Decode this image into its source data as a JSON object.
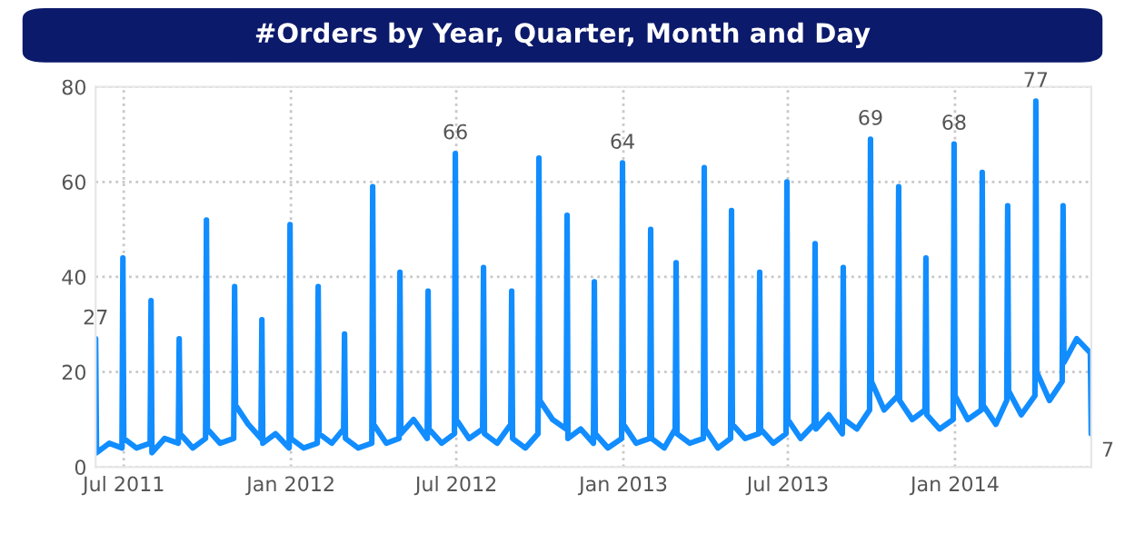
{
  "chart_data": {
    "type": "line",
    "title": "#Orders by Year, Quarter, Month and Day",
    "x": [
      "2011-05-31",
      "2011-06-01",
      "2011-06-15",
      "2011-06-29",
      "2011-06-30",
      "2011-07-01",
      "2011-07-15",
      "2011-07-30",
      "2011-07-31",
      "2011-08-01",
      "2011-08-15",
      "2011-08-30",
      "2011-08-31",
      "2011-09-01",
      "2011-09-15",
      "2011-09-29",
      "2011-09-30",
      "2011-10-01",
      "2011-10-15",
      "2011-10-30",
      "2011-10-31",
      "2011-11-01",
      "2011-11-15",
      "2011-11-29",
      "2011-11-30",
      "2011-12-01",
      "2011-12-15",
      "2011-12-30",
      "2011-12-31",
      "2012-01-01",
      "2012-01-15",
      "2012-01-30",
      "2012-01-31",
      "2012-02-01",
      "2012-02-15",
      "2012-02-28",
      "2012-02-29",
      "2012-03-01",
      "2012-03-15",
      "2012-03-30",
      "2012-03-31",
      "2012-04-01",
      "2012-04-15",
      "2012-04-29",
      "2012-04-30",
      "2012-05-01",
      "2012-05-15",
      "2012-05-30",
      "2012-05-31",
      "2012-06-01",
      "2012-06-15",
      "2012-06-29",
      "2012-06-30",
      "2012-07-01",
      "2012-07-15",
      "2012-07-30",
      "2012-07-31",
      "2012-08-01",
      "2012-08-15",
      "2012-08-30",
      "2012-08-31",
      "2012-09-01",
      "2012-09-15",
      "2012-09-29",
      "2012-09-30",
      "2012-10-01",
      "2012-10-15",
      "2012-10-30",
      "2012-10-31",
      "2012-11-01",
      "2012-11-15",
      "2012-11-29",
      "2012-11-30",
      "2012-12-01",
      "2012-12-15",
      "2012-12-30",
      "2012-12-31",
      "2013-01-01",
      "2013-01-15",
      "2013-01-30",
      "2013-01-31",
      "2013-02-01",
      "2013-02-15",
      "2013-02-27",
      "2013-02-28",
      "2013-03-01",
      "2013-03-15",
      "2013-03-30",
      "2013-03-31",
      "2013-04-01",
      "2013-04-15",
      "2013-04-29",
      "2013-04-30",
      "2013-05-01",
      "2013-05-15",
      "2013-05-30",
      "2013-05-31",
      "2013-06-01",
      "2013-06-15",
      "2013-06-29",
      "2013-06-30",
      "2013-07-01",
      "2013-07-15",
      "2013-07-30",
      "2013-07-31",
      "2013-08-01",
      "2013-08-15",
      "2013-08-30",
      "2013-08-31",
      "2013-09-01",
      "2013-09-15",
      "2013-09-29",
      "2013-09-30",
      "2013-10-01",
      "2013-10-15",
      "2013-10-30",
      "2013-10-31",
      "2013-11-01",
      "2013-11-15",
      "2013-11-29",
      "2013-11-30",
      "2013-12-01",
      "2013-12-15",
      "2013-12-30",
      "2013-12-31",
      "2014-01-01",
      "2014-01-15",
      "2014-01-30",
      "2014-01-31",
      "2014-02-01",
      "2014-02-15",
      "2014-02-27",
      "2014-02-28",
      "2014-03-01",
      "2014-03-15",
      "2014-03-30",
      "2014-03-31",
      "2014-04-01",
      "2014-04-15",
      "2014-04-29",
      "2014-04-30",
      "2014-05-01",
      "2014-05-15",
      "2014-05-30",
      "2014-05-31"
    ],
    "series": [
      {
        "color": "#118dff",
        "values": [
          27,
          3,
          5,
          4,
          44,
          6,
          4,
          5,
          35,
          3,
          6,
          5,
          27,
          7,
          4,
          6,
          52,
          8,
          5,
          6,
          38,
          13,
          9,
          6,
          31,
          5,
          7,
          4,
          51,
          6,
          4,
          5,
          38,
          7,
          5,
          8,
          28,
          6,
          4,
          5,
          59,
          9,
          5,
          6,
          41,
          7,
          10,
          6,
          37,
          8,
          5,
          7,
          66,
          10,
          6,
          8,
          42,
          7,
          5,
          9,
          37,
          6,
          4,
          7,
          65,
          14,
          10,
          8,
          53,
          6,
          8,
          5,
          39,
          7,
          4,
          6,
          64,
          9,
          5,
          6,
          50,
          6,
          4,
          8,
          43,
          7,
          5,
          6,
          63,
          8,
          4,
          6,
          54,
          9,
          6,
          7,
          41,
          8,
          5,
          7,
          60,
          10,
          6,
          9,
          47,
          8,
          11,
          7,
          42,
          10,
          8,
          12,
          69,
          18,
          12,
          15,
          59,
          14,
          10,
          12,
          44,
          11,
          8,
          10,
          68,
          15,
          10,
          12,
          62,
          13,
          9,
          14,
          55,
          16,
          11,
          15,
          77,
          20,
          14,
          18,
          55,
          22,
          27,
          24,
          7
        ]
      }
    ],
    "annotations": [
      {
        "text": "27",
        "x": "2011-05-31",
        "y": 27
      },
      {
        "text": "66",
        "x": "2012-06-30",
        "y": 66
      },
      {
        "text": "64",
        "x": "2012-12-31",
        "y": 64
      },
      {
        "text": "69",
        "x": "2013-09-30",
        "y": 69
      },
      {
        "text": "68",
        "x": "2013-12-31",
        "y": 68
      },
      {
        "text": "77",
        "x": "2014-03-31",
        "y": 77
      },
      {
        "text": "7",
        "x": "2014-05-31",
        "y": 7
      }
    ],
    "xlim": [
      "2011-05-31",
      "2014-05-31"
    ],
    "xticks": [
      {
        "value": "2011-07-01",
        "label": "Jul 2011"
      },
      {
        "value": "2012-01-01",
        "label": "Jan 2012"
      },
      {
        "value": "2012-07-01",
        "label": "Jul 2012"
      },
      {
        "value": "2013-01-01",
        "label": "Jan 2013"
      },
      {
        "value": "2013-07-01",
        "label": "Jul 2013"
      },
      {
        "value": "2014-01-01",
        "label": "Jan 2014"
      }
    ],
    "ylim": [
      0,
      80
    ],
    "yticks": [
      0,
      20,
      40,
      60,
      80
    ],
    "grid": true,
    "line_style": "solid"
  }
}
